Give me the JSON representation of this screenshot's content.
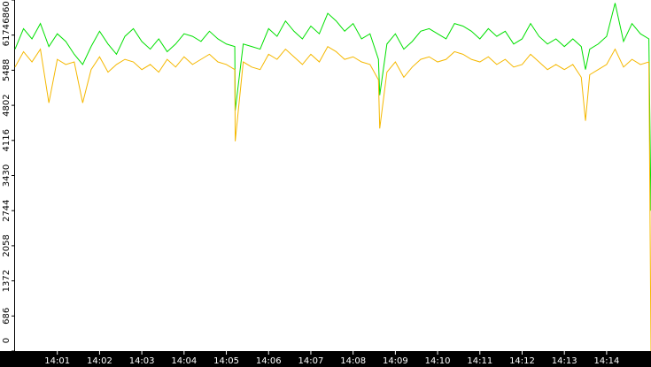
{
  "chart_data": {
    "type": "line",
    "x": [
      0,
      0.2,
      0.4,
      0.6,
      0.8,
      1,
      1.2,
      1.4,
      1.6,
      1.8,
      2,
      2.2,
      2.4,
      2.6,
      2.8,
      3,
      3.2,
      3.4,
      3.6,
      3.8,
      4,
      4.2,
      4.4,
      4.6,
      4.8,
      5,
      5.2,
      5.21,
      5.4,
      5.6,
      5.8,
      6,
      6.2,
      6.4,
      6.6,
      6.8,
      7,
      7.2,
      7.4,
      7.6,
      7.8,
      8,
      8.2,
      8.4,
      8.6,
      8.63,
      8.8,
      9,
      9.2,
      9.4,
      9.6,
      9.8,
      10,
      10.2,
      10.4,
      10.6,
      10.8,
      11,
      11.2,
      11.4,
      11.6,
      11.8,
      12,
      12.2,
      12.4,
      12.6,
      12.8,
      13,
      13.2,
      13.4,
      13.5,
      13.6,
      13.8,
      14,
      14.2,
      14.4,
      14.6,
      14.8,
      15,
      15.05
    ],
    "series": [
      {
        "color": "#00e000",
        "values": [
          5900,
          6300,
          6100,
          6400,
          5950,
          6200,
          6050,
          5800,
          5600,
          5950,
          6250,
          6000,
          5800,
          6150,
          6300,
          6050,
          5900,
          6100,
          5850,
          6000,
          6200,
          6150,
          6050,
          6250,
          6100,
          6000,
          5950,
          4700,
          6000,
          5950,
          5900,
          6300,
          6150,
          6450,
          6250,
          6100,
          6350,
          6200,
          6600,
          6450,
          6250,
          6400,
          6100,
          6200,
          5700,
          5000,
          6000,
          6200,
          5900,
          6050,
          6250,
          6300,
          6200,
          6100,
          6400,
          6350,
          6250,
          6100,
          6300,
          6150,
          6250,
          6000,
          6100,
          6400,
          6150,
          6000,
          6100,
          5950,
          6100,
          5950,
          5500,
          5900,
          6000,
          6150,
          6800,
          6050,
          6400,
          6200,
          6100,
          2744
        ]
      },
      {
        "color": "#f5b800",
        "values": [
          5550,
          5850,
          5650,
          5900,
          4850,
          5700,
          5600,
          5650,
          4850,
          5500,
          5750,
          5450,
          5600,
          5700,
          5650,
          5500,
          5600,
          5450,
          5700,
          5550,
          5750,
          5600,
          5700,
          5800,
          5650,
          5600,
          5500,
          4100,
          5650,
          5550,
          5500,
          5800,
          5700,
          5900,
          5750,
          5600,
          5800,
          5650,
          5950,
          5850,
          5700,
          5750,
          5650,
          5600,
          5300,
          4350,
          5450,
          5650,
          5350,
          5550,
          5700,
          5750,
          5650,
          5700,
          5850,
          5800,
          5700,
          5650,
          5750,
          5600,
          5700,
          5550,
          5600,
          5800,
          5650,
          5500,
          5600,
          5500,
          5600,
          5350,
          4500,
          5400,
          5500,
          5600,
          5900,
          5550,
          5700,
          5600,
          5650,
          0
        ]
      }
    ],
    "xlim": [
      0,
      15.05
    ],
    "xticks": [
      {
        "value": 1,
        "label": "14:01"
      },
      {
        "value": 2,
        "label": "14:02"
      },
      {
        "value": 3,
        "label": "14:03"
      },
      {
        "value": 4,
        "label": "14:04"
      },
      {
        "value": 5,
        "label": "14:05"
      },
      {
        "value": 6,
        "label": "14:06"
      },
      {
        "value": 7,
        "label": "14:07"
      },
      {
        "value": 8,
        "label": "14:08"
      },
      {
        "value": 9,
        "label": "14:09"
      },
      {
        "value": 10,
        "label": "14:10"
      },
      {
        "value": 11,
        "label": "14:11"
      },
      {
        "value": 12,
        "label": "14:12"
      },
      {
        "value": 13,
        "label": "14:13"
      },
      {
        "value": 14,
        "label": "14:14"
      }
    ],
    "ylim": [
      0,
      6860
    ],
    "yticks": [
      0,
      686,
      1372,
      2058,
      2744,
      3430,
      4116,
      4802,
      5488,
      6174,
      6860
    ],
    "grid": false
  }
}
